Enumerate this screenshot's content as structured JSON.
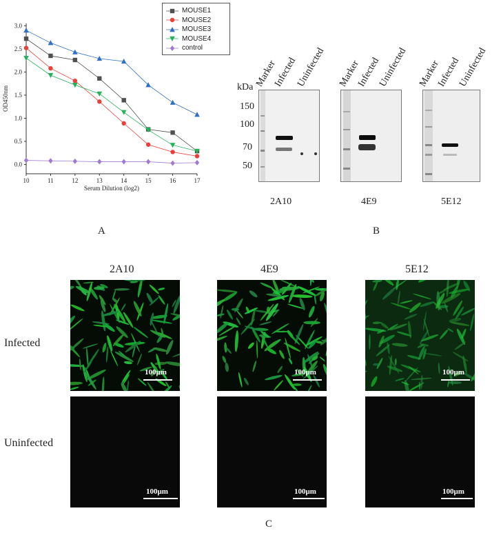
{
  "panels": {
    "a": "A",
    "b": "B",
    "c": "C"
  },
  "chart_data": {
    "type": "line",
    "xlabel": "Serum Dilution (log2)",
    "ylabel": "OD450nm",
    "x": [
      10,
      11,
      12,
      13,
      14,
      15,
      16,
      17
    ],
    "xlim": [
      10,
      17
    ],
    "ylim": [
      -0.2,
      3.05
    ],
    "yticks": [
      "0.0",
      "0.5",
      "1.0",
      "1.5",
      "2.0",
      "2.5",
      "3.0"
    ],
    "xticks": [
      "10",
      "11",
      "12",
      "13",
      "14",
      "15",
      "16",
      "17"
    ],
    "legend_position": "top-right",
    "series": [
      {
        "name": "MOUSE1",
        "marker": "square",
        "color": "#505050",
        "values": [
          2.72,
          2.35,
          2.26,
          1.86,
          1.39,
          0.76,
          0.69,
          0.29
        ]
      },
      {
        "name": "MOUSE2",
        "marker": "circle",
        "color": "#e8413a",
        "values": [
          2.52,
          2.08,
          1.81,
          1.36,
          0.89,
          0.43,
          0.27,
          0.18
        ]
      },
      {
        "name": "MOUSE3",
        "marker": "triangle-up",
        "color": "#2f6fc4",
        "values": [
          2.9,
          2.63,
          2.43,
          2.29,
          2.23,
          1.72,
          1.34,
          1.08
        ]
      },
      {
        "name": "MOUSE4",
        "marker": "triangle-down",
        "color": "#25b05a",
        "values": [
          2.3,
          1.93,
          1.72,
          1.53,
          1.13,
          0.75,
          0.42,
          0.29
        ]
      },
      {
        "name": "control",
        "marker": "diamond",
        "color": "#a07ad0",
        "values": [
          0.09,
          0.08,
          0.07,
          0.06,
          0.06,
          0.06,
          0.03,
          0.04
        ]
      }
    ]
  },
  "western": {
    "kda_label": "kDa",
    "markers": [
      "150",
      "100",
      "70",
      "50"
    ],
    "lanes": [
      "Marker",
      "Infected",
      "Uninfected"
    ],
    "blots": [
      {
        "name": "2A10"
      },
      {
        "name": "4E9"
      },
      {
        "name": "5E12"
      }
    ]
  },
  "ifa": {
    "columns": [
      "2A10",
      "4E9",
      "5E12"
    ],
    "rows": [
      "Infected",
      "Uninfected"
    ],
    "scale_label": "100μm"
  }
}
